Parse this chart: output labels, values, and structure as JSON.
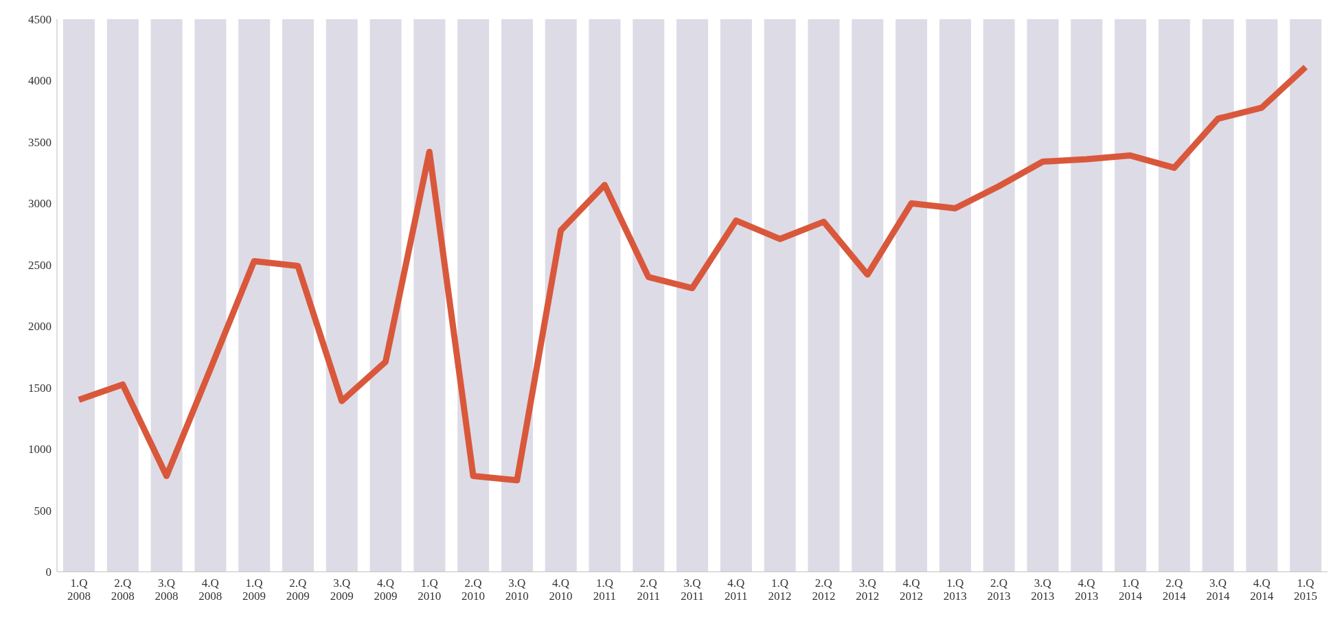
{
  "chart_data": {
    "type": "line",
    "categories": [
      "1.Q 2008",
      "2.Q 2008",
      "3.Q 2008",
      "4.Q 2008",
      "1.Q 2009",
      "2.Q 2009",
      "3.Q 2009",
      "4.Q 2009",
      "1.Q 2010",
      "2.Q 2010",
      "3.Q 2010",
      "4.Q 2010",
      "1.Q 2011",
      "2.Q 2011",
      "3.Q 2011",
      "4.Q 2011",
      "1.Q 2012",
      "2.Q 2012",
      "3.Q 2012",
      "4.Q 2012",
      "1.Q 2013",
      "2.Q 2013",
      "3.Q 2013",
      "4.Q 2013",
      "1.Q 2014",
      "2.Q 2014",
      "3.Q 2014",
      "4.Q 2014",
      "1.Q 2015"
    ],
    "series": [
      {
        "type": "bar",
        "color": "#dddbe6",
        "values": [
          4500,
          4500,
          4500,
          4500,
          4500,
          4500,
          4500,
          4500,
          4500,
          4500,
          4500,
          4500,
          4500,
          4500,
          4500,
          4500,
          4500,
          4500,
          4500,
          4500,
          4500,
          4500,
          4500,
          4500,
          4500,
          4500,
          4500,
          4500,
          4500
        ]
      },
      {
        "color": "#d9583b",
        "values": [
          1400,
          1525,
          780,
          1650,
          2530,
          2490,
          1390,
          1710,
          3420,
          780,
          745,
          2780,
          3150,
          2400,
          2310,
          2860,
          2710,
          2850,
          2420,
          3000,
          2960,
          3140,
          3340,
          3360,
          3390,
          3290,
          3690,
          3780,
          4110
        ]
      }
    ],
    "ylim": [
      0,
      4500
    ],
    "yticks": [
      0,
      500,
      1000,
      1500,
      2000,
      2500,
      3000,
      3500,
      4000,
      4500
    ],
    "grid": false,
    "legend": false,
    "marker": "none",
    "line_style": "solid"
  }
}
